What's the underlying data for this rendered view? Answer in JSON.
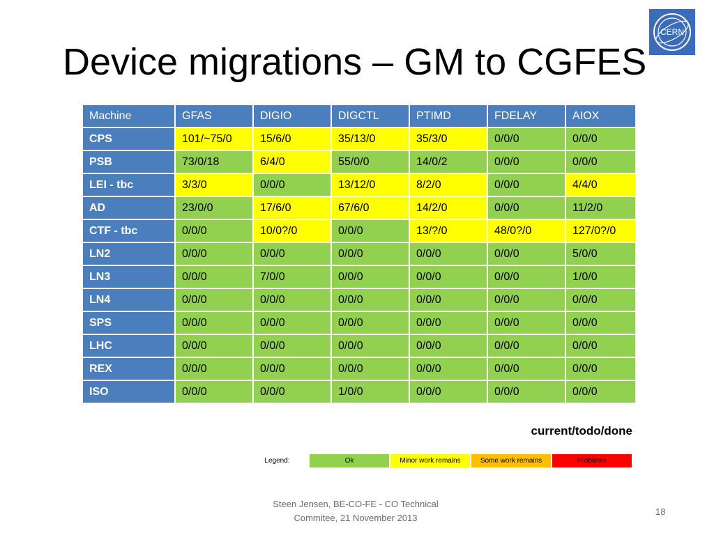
{
  "slide": {
    "title": "Device migrations – GM to CGFES",
    "logo_text": "CERN",
    "page_number": "18",
    "footer": [
      "Steen Jensen, BE-CO-FE - CO Technical",
      "Commitee, 21 November 2013"
    ]
  },
  "table": {
    "headers": [
      "Machine",
      "GFAS",
      "DIGIO",
      "DIGCTL",
      "PTIMD",
      "FDELAY",
      "AIOX"
    ],
    "rows": [
      {
        "machine": "CPS",
        "cells": [
          {
            "v": "101/~75/0",
            "s": "minor"
          },
          {
            "v": "15/6/0",
            "s": "minor"
          },
          {
            "v": "35/13/0",
            "s": "minor"
          },
          {
            "v": "35/3/0",
            "s": "minor"
          },
          {
            "v": "0/0/0",
            "s": "ok"
          },
          {
            "v": "0/0/0",
            "s": "ok"
          }
        ]
      },
      {
        "machine": "PSB",
        "cells": [
          {
            "v": "73/0/18",
            "s": "ok"
          },
          {
            "v": "6/4/0",
            "s": "minor"
          },
          {
            "v": "55/0/0",
            "s": "ok"
          },
          {
            "v": "14/0/2",
            "s": "ok"
          },
          {
            "v": "0/0/0",
            "s": "ok"
          },
          {
            "v": "0/0/0",
            "s": "ok"
          }
        ]
      },
      {
        "machine": "LEI - tbc",
        "cells": [
          {
            "v": "3/3/0",
            "s": "minor"
          },
          {
            "v": "0/0/0",
            "s": "ok"
          },
          {
            "v": "13/12/0",
            "s": "minor"
          },
          {
            "v": "8/2/0",
            "s": "minor"
          },
          {
            "v": "0/0/0",
            "s": "ok"
          },
          {
            "v": "4/4/0",
            "s": "minor"
          }
        ]
      },
      {
        "machine": "AD",
        "cells": [
          {
            "v": "23/0/0",
            "s": "ok"
          },
          {
            "v": "17/6/0",
            "s": "minor"
          },
          {
            "v": "67/6/0",
            "s": "minor"
          },
          {
            "v": "14/2/0",
            "s": "minor"
          },
          {
            "v": "0/0/0",
            "s": "ok"
          },
          {
            "v": "11/2/0",
            "s": "ok"
          }
        ]
      },
      {
        "machine": "CTF - tbc",
        "cells": [
          {
            "v": "0/0/0",
            "s": "ok"
          },
          {
            "v": "10/0?/0",
            "s": "minor"
          },
          {
            "v": "0/0/0",
            "s": "ok"
          },
          {
            "v": "13/?/0",
            "s": "minor"
          },
          {
            "v": "48/0?/0",
            "s": "minor"
          },
          {
            "v": "127/0?/0",
            "s": "minor"
          }
        ]
      },
      {
        "machine": "LN2",
        "cells": [
          {
            "v": "0/0/0",
            "s": "ok"
          },
          {
            "v": "0/0/0",
            "s": "ok"
          },
          {
            "v": "0/0/0",
            "s": "ok"
          },
          {
            "v": "0/0/0",
            "s": "ok"
          },
          {
            "v": "0/0/0",
            "s": "ok"
          },
          {
            "v": "5/0/0",
            "s": "ok"
          }
        ]
      },
      {
        "machine": "LN3",
        "cells": [
          {
            "v": "0/0/0",
            "s": "ok"
          },
          {
            "v": "7/0/0",
            "s": "ok"
          },
          {
            "v": "0/0/0",
            "s": "ok"
          },
          {
            "v": "0/0/0",
            "s": "ok"
          },
          {
            "v": "0/0/0",
            "s": "ok"
          },
          {
            "v": "1/0/0",
            "s": "ok"
          }
        ]
      },
      {
        "machine": "LN4",
        "cells": [
          {
            "v": "0/0/0",
            "s": "ok"
          },
          {
            "v": "0/0/0",
            "s": "ok"
          },
          {
            "v": "0/0/0",
            "s": "ok"
          },
          {
            "v": "0/0/0",
            "s": "ok"
          },
          {
            "v": "0/0/0",
            "s": "ok"
          },
          {
            "v": "0/0/0",
            "s": "ok"
          }
        ]
      },
      {
        "machine": "SPS",
        "cells": [
          {
            "v": "0/0/0",
            "s": "ok"
          },
          {
            "v": "0/0/0",
            "s": "ok"
          },
          {
            "v": "0/0/0",
            "s": "ok"
          },
          {
            "v": "0/0/0",
            "s": "ok"
          },
          {
            "v": "0/0/0",
            "s": "ok"
          },
          {
            "v": "0/0/0",
            "s": "ok"
          }
        ]
      },
      {
        "machine": "LHC",
        "cells": [
          {
            "v": "0/0/0",
            "s": "ok"
          },
          {
            "v": "0/0/0",
            "s": "ok"
          },
          {
            "v": "0/0/0",
            "s": "ok"
          },
          {
            "v": "0/0/0",
            "s": "ok"
          },
          {
            "v": "0/0/0",
            "s": "ok"
          },
          {
            "v": "0/0/0",
            "s": "ok"
          }
        ]
      },
      {
        "machine": "REX",
        "cells": [
          {
            "v": "0/0/0",
            "s": "ok"
          },
          {
            "v": "0/0/0",
            "s": "ok"
          },
          {
            "v": "0/0/0",
            "s": "ok"
          },
          {
            "v": "0/0/0",
            "s": "ok"
          },
          {
            "v": "0/0/0",
            "s": "ok"
          },
          {
            "v": "0/0/0",
            "s": "ok"
          }
        ]
      },
      {
        "machine": "ISO",
        "cells": [
          {
            "v": "0/0/0",
            "s": "ok"
          },
          {
            "v": "0/0/0",
            "s": "ok"
          },
          {
            "v": "1/0/0",
            "s": "ok"
          },
          {
            "v": "0/0/0",
            "s": "ok"
          },
          {
            "v": "0/0/0",
            "s": "ok"
          },
          {
            "v": "0/0/0",
            "s": "ok"
          }
        ]
      }
    ],
    "format_note": "current/todo/done"
  },
  "legend": {
    "label": "Legend:",
    "items": [
      {
        "key": "ok",
        "label": "Ok",
        "color": "#92d050"
      },
      {
        "key": "minor",
        "label": "Minor work remains",
        "color": "#ffff00"
      },
      {
        "key": "some",
        "label": "Some work remains",
        "color": "#ffc000"
      },
      {
        "key": "prob",
        "label": "Problems",
        "color": "#ff0000"
      }
    ]
  },
  "colors": {
    "header_blue": "#4a7ebd",
    "ok": "#92d050",
    "minor": "#ffff00",
    "some": "#ffc000",
    "problems": "#ff0000"
  }
}
